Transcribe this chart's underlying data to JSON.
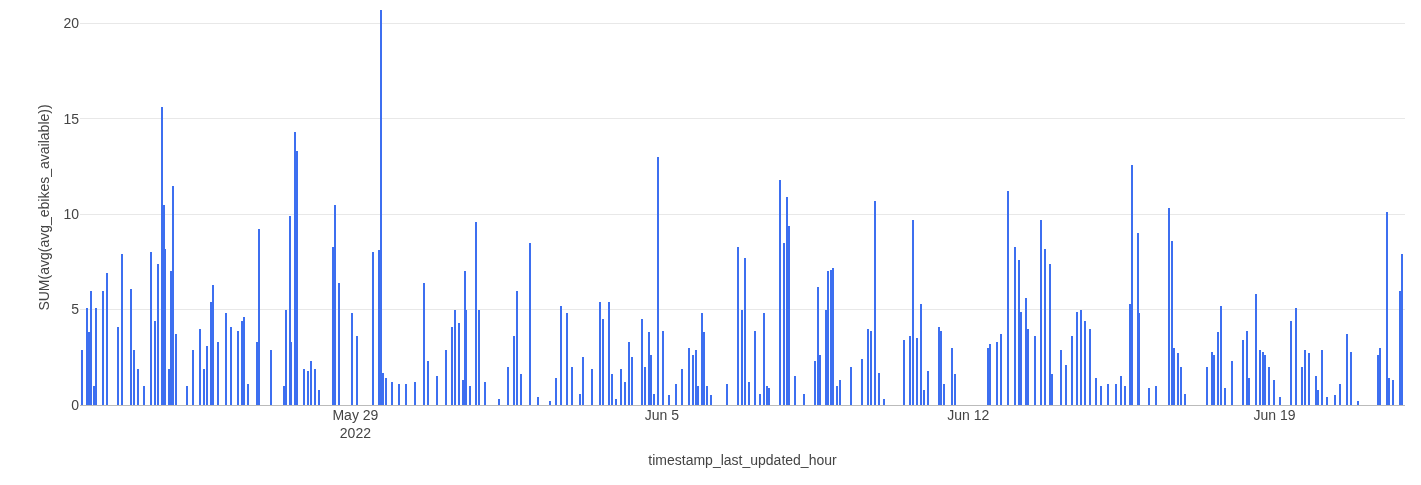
{
  "chart_data": {
    "type": "bar",
    "xlabel": "timestamp_last_updated_hour",
    "ylabel": "SUM(avg(avg_ebikes_available))",
    "x": [
      "2022-05-22T18:00",
      "2022-05-22T21:00",
      "2022-05-22T22:00",
      "2022-05-22T23:00",
      "2022-05-23T01:00",
      "2022-05-23T02:00",
      "2022-05-23T06:00",
      "2022-05-23T08:00",
      "2022-05-23T14:00",
      "2022-05-23T16:00",
      "2022-05-23T21:00",
      "2022-05-23T23:00",
      "2022-05-24T01:00",
      "2022-05-24T04:00",
      "2022-05-24T08:00",
      "2022-05-24T10:00",
      "2022-05-24T12:00",
      "2022-05-24T14:00",
      "2022-05-24T15:00",
      "2022-05-24T16:00",
      "2022-05-24T18:00",
      "2022-05-24T19:00",
      "2022-05-24T20:00",
      "2022-05-24T22:00",
      "2022-05-25T04:00",
      "2022-05-25T07:00",
      "2022-05-25T11:00",
      "2022-05-25T13:00",
      "2022-05-25T15:00",
      "2022-05-25T17:00",
      "2022-05-25T18:00",
      "2022-05-25T21:00",
      "2022-05-26T01:00",
      "2022-05-26T04:00",
      "2022-05-26T08:00",
      "2022-05-26T10:00",
      "2022-05-26T11:00",
      "2022-05-26T13:00",
      "2022-05-26T18:00",
      "2022-05-26T19:00",
      "2022-05-27T02:00",
      "2022-05-27T09:00",
      "2022-05-27T10:00",
      "2022-05-27T12:00",
      "2022-05-27T13:00",
      "2022-05-27T15:00",
      "2022-05-27T16:00",
      "2022-05-27T20:00",
      "2022-05-27T22:00",
      "2022-05-28T00:00",
      "2022-05-28T02:00",
      "2022-05-28T04:00",
      "2022-05-28T12:00",
      "2022-05-28T13:00",
      "2022-05-28T15:00",
      "2022-05-28T22:00",
      "2022-05-29T01:00",
      "2022-05-29T10:00",
      "2022-05-29T13:00",
      "2022-05-29T14:00",
      "2022-05-29T15:00",
      "2022-05-29T17:00",
      "2022-05-29T20:00",
      "2022-05-30T00:00",
      "2022-05-30T04:00",
      "2022-05-30T09:00",
      "2022-05-30T14:00",
      "2022-05-30T16:00",
      "2022-05-30T21:00",
      "2022-05-31T02:00",
      "2022-05-31T05:00",
      "2022-05-31T07:00",
      "2022-05-31T09:00",
      "2022-05-31T11:00",
      "2022-05-31T12:00",
      "2022-05-31T13:00",
      "2022-05-31T15:00",
      "2022-05-31T18:00",
      "2022-05-31T20:00",
      "2022-05-31T23:00",
      "2022-06-01T07:00",
      "2022-06-01T12:00",
      "2022-06-01T15:00",
      "2022-06-01T17:00",
      "2022-06-01T19:00",
      "2022-06-02T00:00",
      "2022-06-02T04:00",
      "2022-06-02T11:00",
      "2022-06-02T14:00",
      "2022-06-02T17:00",
      "2022-06-02T20:00",
      "2022-06-02T23:00",
      "2022-06-03T03:00",
      "2022-06-03T05:00",
      "2022-06-03T10:00",
      "2022-06-03T14:00",
      "2022-06-03T16:00",
      "2022-06-03T19:00",
      "2022-06-03T21:00",
      "2022-06-03T23:00",
      "2022-06-04T02:00",
      "2022-06-04T04:00",
      "2022-06-04T06:00",
      "2022-06-04T08:00",
      "2022-06-04T13:00",
      "2022-06-04T15:00",
      "2022-06-04T17:00",
      "2022-06-04T18:00",
      "2022-06-04T20:00",
      "2022-06-04T22:00",
      "2022-06-05T01:00",
      "2022-06-05T04:00",
      "2022-06-05T08:00",
      "2022-06-05T11:00",
      "2022-06-05T15:00",
      "2022-06-05T17:00",
      "2022-06-05T19:00",
      "2022-06-05T20:00",
      "2022-06-05T22:00",
      "2022-06-05T23:00",
      "2022-06-06T01:00",
      "2022-06-06T03:00",
      "2022-06-06T12:00",
      "2022-06-06T18:00",
      "2022-06-06T20:00",
      "2022-06-06T22:00",
      "2022-06-07T00:00",
      "2022-06-07T03:00",
      "2022-06-07T06:00",
      "2022-06-07T08:00",
      "2022-06-07T10:00",
      "2022-06-07T11:00",
      "2022-06-07T17:00",
      "2022-06-07T19:00",
      "2022-06-07T21:00",
      "2022-06-07T22:00",
      "2022-06-08T01:00",
      "2022-06-08T06:00",
      "2022-06-08T12:00",
      "2022-06-08T14:00",
      "2022-06-08T15:00",
      "2022-06-08T18:00",
      "2022-06-08T19:00",
      "2022-06-08T21:00",
      "2022-06-08T22:00",
      "2022-06-09T00:00",
      "2022-06-09T02:00",
      "2022-06-09T08:00",
      "2022-06-09T14:00",
      "2022-06-09T17:00",
      "2022-06-09T19:00",
      "2022-06-09T21:00",
      "2022-06-09T23:00",
      "2022-06-10T02:00",
      "2022-06-10T13:00",
      "2022-06-10T16:00",
      "2022-06-10T18:00",
      "2022-06-10T20:00",
      "2022-06-10T22:00",
      "2022-06-11T00:00",
      "2022-06-11T02:00",
      "2022-06-11T08:00",
      "2022-06-11T09:00",
      "2022-06-11T11:00",
      "2022-06-11T15:00",
      "2022-06-11T17:00",
      "2022-06-12T11:00",
      "2022-06-12T12:00",
      "2022-06-12T16:00",
      "2022-06-12T18:00",
      "2022-06-12T22:00",
      "2022-06-13T02:00",
      "2022-06-13T04:00",
      "2022-06-13T05:00",
      "2022-06-13T08:00",
      "2022-06-13T09:00",
      "2022-06-13T13:00",
      "2022-06-13T16:00",
      "2022-06-13T18:00",
      "2022-06-13T21:00",
      "2022-06-13T22:00",
      "2022-06-14T03:00",
      "2022-06-14T06:00",
      "2022-06-14T09:00",
      "2022-06-14T12:00",
      "2022-06-14T14:00",
      "2022-06-14T16:00",
      "2022-06-14T19:00",
      "2022-06-14T22:00",
      "2022-06-15T01:00",
      "2022-06-15T05:00",
      "2022-06-15T09:00",
      "2022-06-15T12:00",
      "2022-06-15T14:00",
      "2022-06-15T17:00",
      "2022-06-15T18:00",
      "2022-06-15T21:00",
      "2022-06-15T22:00",
      "2022-06-16T03:00",
      "2022-06-16T07:00",
      "2022-06-16T14:00",
      "2022-06-16T16:00",
      "2022-06-16T17:00",
      "2022-06-16T19:00",
      "2022-06-16T21:00",
      "2022-06-16T23:00",
      "2022-06-17T11:00",
      "2022-06-17T14:00",
      "2022-06-17T15:00",
      "2022-06-17T17:00",
      "2022-06-17T19:00",
      "2022-06-17T21:00",
      "2022-06-18T01:00",
      "2022-06-18T07:00",
      "2022-06-18T09:00",
      "2022-06-18T10:00",
      "2022-06-18T14:00",
      "2022-06-18T16:00",
      "2022-06-18T18:00",
      "2022-06-18T19:00",
      "2022-06-18T21:00",
      "2022-06-19T00:00",
      "2022-06-19T03:00",
      "2022-06-19T09:00",
      "2022-06-19T12:00",
      "2022-06-19T15:00",
      "2022-06-19T17:00",
      "2022-06-19T19:00",
      "2022-06-19T23:00",
      "2022-06-20T00:00",
      "2022-06-20T02:00",
      "2022-06-20T05:00",
      "2022-06-20T09:00",
      "2022-06-20T12:00",
      "2022-06-20T16:00",
      "2022-06-20T18:00",
      "2022-06-20T22:00",
      "2022-06-21T09:00",
      "2022-06-21T10:00",
      "2022-06-21T14:00",
      "2022-06-21T15:00",
      "2022-06-21T17:00",
      "2022-06-21T21:00",
      "2022-06-21T22:00"
    ],
    "values": [
      2.9,
      5.1,
      3.8,
      6.0,
      1.0,
      5.1,
      6.0,
      6.9,
      4.1,
      7.9,
      6.1,
      2.9,
      1.9,
      1.0,
      8.0,
      4.4,
      7.4,
      15.6,
      10.5,
      8.2,
      1.9,
      7.0,
      11.5,
      3.7,
      1.0,
      2.9,
      4.0,
      1.9,
      3.1,
      5.4,
      6.3,
      3.3,
      4.8,
      4.1,
      3.9,
      4.4,
      4.6,
      1.1,
      3.3,
      9.2,
      2.9,
      1.0,
      5.0,
      9.9,
      3.3,
      14.3,
      13.3,
      1.9,
      1.8,
      2.3,
      1.9,
      0.8,
      8.3,
      10.5,
      6.4,
      4.8,
      3.6,
      8.0,
      8.1,
      20.7,
      1.7,
      1.4,
      1.2,
      1.1,
      1.1,
      1.2,
      6.4,
      2.3,
      1.5,
      2.9,
      4.1,
      5.0,
      4.3,
      1.3,
      7.0,
      5.0,
      1.0,
      9.6,
      5.0,
      1.2,
      0.3,
      2.0,
      3.6,
      6.0,
      1.6,
      8.5,
      0.4,
      0.2,
      1.4,
      5.2,
      4.8,
      2.0,
      0.6,
      2.5,
      1.9,
      5.4,
      4.5,
      5.4,
      1.6,
      0.3,
      1.9,
      1.2,
      3.3,
      2.5,
      4.5,
      2.0,
      3.8,
      2.6,
      0.6,
      13.0,
      3.9,
      0.5,
      1.1,
      1.9,
      3.0,
      2.6,
      2.9,
      1.0,
      4.8,
      3.8,
      1.0,
      0.5,
      1.1,
      8.3,
      5.0,
      7.7,
      1.2,
      3.9,
      0.6,
      4.8,
      1.0,
      0.9,
      11.8,
      8.5,
      10.9,
      9.4,
      1.5,
      0.6,
      2.3,
      6.2,
      2.6,
      5.0,
      7.0,
      7.1,
      7.2,
      1.0,
      1.3,
      2.0,
      2.4,
      4.0,
      3.9,
      10.7,
      1.7,
      0.3,
      3.4,
      3.6,
      9.7,
      3.5,
      5.3,
      0.8,
      1.8,
      4.1,
      3.9,
      1.1,
      3.0,
      1.6,
      3.0,
      3.2,
      3.3,
      3.7,
      11.2,
      8.3,
      7.6,
      4.9,
      5.6,
      4.0,
      3.6,
      9.7,
      8.2,
      7.4,
      1.6,
      2.9,
      2.1,
      3.6,
      4.9,
      5.0,
      4.4,
      4.0,
      1.4,
      1.0,
      1.1,
      1.1,
      1.5,
      1.0,
      5.3,
      12.6,
      9.0,
      4.8,
      0.9,
      1.0,
      10.3,
      8.6,
      3.0,
      2.7,
      2.0,
      0.6,
      2.0,
      2.8,
      2.6,
      3.8,
      5.2,
      0.9,
      2.3,
      3.4,
      3.9,
      1.4,
      5.8,
      2.9,
      2.8,
      2.6,
      2.0,
      1.3,
      0.4,
      4.4,
      5.1,
      2.0,
      2.9,
      2.7,
      1.5,
      0.8,
      2.9,
      0.4,
      0.5,
      1.1,
      3.7,
      2.8,
      0.2,
      2.6,
      3.0,
      10.1,
      1.4,
      1.3,
      6.0,
      7.9
    ],
    "color": "#3d6ff0",
    "xlim": [
      "2022-05-22T17:00",
      "2022-06-21T23:30"
    ],
    "xticks": [
      {
        "value": "2022-05-29",
        "label": "May 29\n2022"
      },
      {
        "value": "2022-06-05",
        "label": "Jun 5"
      },
      {
        "value": "2022-06-12",
        "label": "Jun 12"
      },
      {
        "value": "2022-06-19",
        "label": "Jun 19"
      }
    ],
    "ylim": [
      0,
      20.7
    ],
    "yticks": [
      0,
      5,
      10,
      15,
      20
    ],
    "grid": "y",
    "legend": false
  }
}
